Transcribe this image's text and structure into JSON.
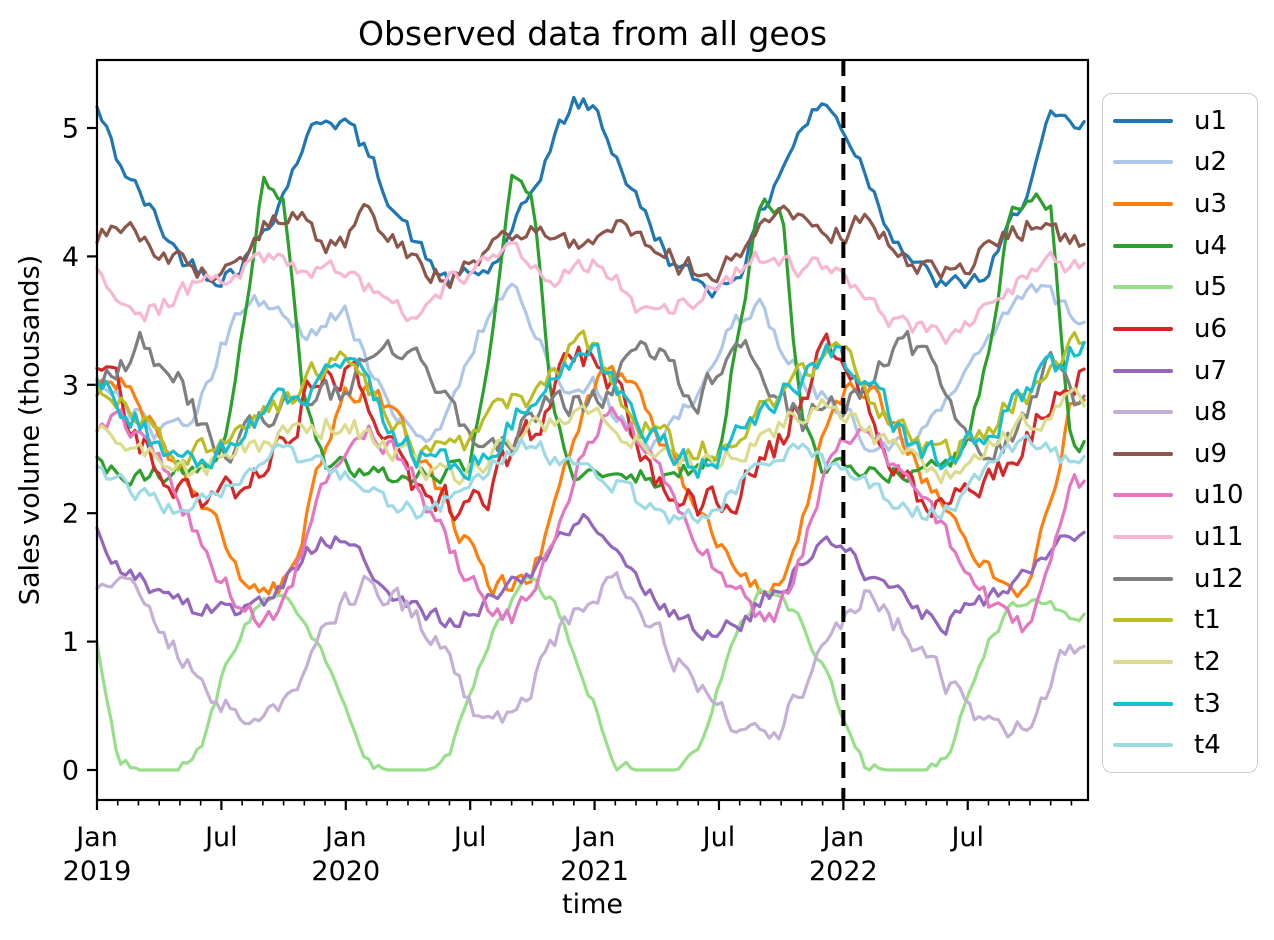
{
  "chart_data": {
    "type": "line",
    "title": "Observed data from all geos",
    "xlabel": "time",
    "ylabel": "Sales volume (thousands)",
    "grid": false,
    "legend_position": "right",
    "y_ticks": [
      0,
      1,
      2,
      3,
      4,
      5
    ],
    "ylim": [
      -0.25,
      5.55
    ],
    "x_range": {
      "start": "2019-01",
      "end": "2022-12",
      "resolution": "monthly",
      "months": 48
    },
    "x_major_ticks": [
      {
        "month_index": 0,
        "label": "Jan",
        "year": "2019"
      },
      {
        "month_index": 6,
        "label": "Jul",
        "year": ""
      },
      {
        "month_index": 12,
        "label": "Jan",
        "year": "2020"
      },
      {
        "month_index": 18,
        "label": "Jul",
        "year": ""
      },
      {
        "month_index": 24,
        "label": "Jan",
        "year": "2021"
      },
      {
        "month_index": 30,
        "label": "Jul",
        "year": ""
      },
      {
        "month_index": 36,
        "label": "Jan",
        "year": "2022"
      },
      {
        "month_index": 42,
        "label": "Jul",
        "year": ""
      }
    ],
    "x_minor_ticks": "every month",
    "event_line": {
      "date": "2022-01",
      "month_index": 36,
      "style": "dashed",
      "color": "#000000"
    },
    "series": [
      {
        "name": "u1",
        "color": "#1f77b4",
        "noise": 0.07,
        "values": [
          5.15,
          4.75,
          4.5,
          4.25,
          4.0,
          3.9,
          3.85,
          3.95,
          4.2,
          4.5,
          4.9,
          5.1,
          5.05,
          4.8,
          4.5,
          4.2,
          3.95,
          3.8,
          3.85,
          3.9,
          4.15,
          4.5,
          4.9,
          5.2,
          5.15,
          4.8,
          4.45,
          4.15,
          3.9,
          3.8,
          3.75,
          3.9,
          4.3,
          4.7,
          5.0,
          5.2,
          5.0,
          4.7,
          4.3,
          4.05,
          3.85,
          3.75,
          3.8,
          3.85,
          4.2,
          4.6,
          5.05,
          5.0
        ]
      },
      {
        "name": "u2",
        "color": "#aec7e8",
        "noise": 0.07,
        "values": [
          3.1,
          2.9,
          2.75,
          2.6,
          2.65,
          2.9,
          3.3,
          3.55,
          3.65,
          3.5,
          3.4,
          3.5,
          3.55,
          3.2,
          2.9,
          2.65,
          2.6,
          2.8,
          3.2,
          3.6,
          3.8,
          3.5,
          3.1,
          2.95,
          3.0,
          2.75,
          2.6,
          2.55,
          2.7,
          3.0,
          3.3,
          3.5,
          3.6,
          3.3,
          3.05,
          2.9,
          2.8,
          2.6,
          2.5,
          2.55,
          2.65,
          2.85,
          3.1,
          3.3,
          3.6,
          3.8,
          3.7,
          3.5
        ]
      },
      {
        "name": "u3",
        "color": "#ff7f0e",
        "noise": 0.08,
        "values": [
          2.95,
          3.05,
          2.9,
          2.6,
          2.35,
          2.1,
          1.8,
          1.5,
          1.35,
          1.45,
          1.9,
          2.5,
          2.9,
          3.0,
          2.85,
          2.55,
          2.3,
          2.0,
          1.7,
          1.45,
          1.4,
          1.5,
          2.0,
          2.6,
          3.0,
          3.1,
          2.9,
          2.6,
          2.3,
          2.05,
          1.75,
          1.5,
          1.4,
          1.5,
          1.95,
          2.55,
          2.95,
          3.0,
          2.8,
          2.5,
          2.25,
          2.0,
          1.75,
          1.55,
          1.45,
          1.4,
          2.1,
          2.9
        ]
      },
      {
        "name": "u4",
        "color": "#2ca02c",
        "noise": 0.07,
        "values": [
          2.4,
          2.3,
          2.25,
          2.3,
          2.35,
          2.3,
          2.45,
          3.4,
          4.6,
          4.5,
          2.9,
          2.4,
          2.35,
          2.3,
          2.25,
          2.3,
          2.3,
          2.35,
          2.4,
          3.3,
          4.55,
          4.4,
          2.8,
          2.35,
          2.4,
          2.35,
          2.3,
          2.25,
          2.35,
          2.3,
          2.45,
          3.5,
          4.45,
          4.4,
          2.7,
          2.3,
          2.35,
          2.3,
          2.3,
          2.35,
          2.3,
          2.35,
          2.5,
          3.2,
          4.3,
          4.5,
          4.4,
          2.5
        ]
      },
      {
        "name": "u5",
        "color": "#98df8a",
        "noise": 0.04,
        "values": [
          1.0,
          0.1,
          0,
          0,
          0,
          0.15,
          0.7,
          1.1,
          1.35,
          1.4,
          1.2,
          0.85,
          0.45,
          0.05,
          0,
          0,
          0,
          0.1,
          0.6,
          1.05,
          1.3,
          1.5,
          1.3,
          0.9,
          0.5,
          0.05,
          0,
          0,
          0,
          0.15,
          0.65,
          1.1,
          1.4,
          1.35,
          1.15,
          0.8,
          0.4,
          0.05,
          0,
          0,
          0,
          0.1,
          0.55,
          1.0,
          1.25,
          1.35,
          1.3,
          1.2
        ]
      },
      {
        "name": "u6",
        "color": "#d62728",
        "noise": 0.13,
        "values": [
          3.25,
          2.95,
          2.6,
          2.35,
          2.15,
          2.1,
          2.2,
          2.15,
          2.35,
          2.6,
          2.85,
          3.1,
          3.15,
          2.9,
          2.55,
          2.3,
          2.1,
          2.05,
          2.15,
          2.2,
          2.4,
          2.65,
          2.9,
          3.25,
          3.2,
          2.9,
          2.6,
          2.3,
          2.15,
          2.0,
          2.1,
          2.2,
          2.35,
          2.55,
          2.9,
          3.35,
          3.1,
          2.85,
          2.55,
          2.35,
          2.1,
          2.05,
          2.1,
          2.25,
          2.4,
          2.6,
          2.9,
          3.1
        ]
      },
      {
        "name": "u7",
        "color": "#9467bd",
        "noise": 0.07,
        "values": [
          1.85,
          1.6,
          1.5,
          1.4,
          1.3,
          1.2,
          1.25,
          1.2,
          1.3,
          1.5,
          1.7,
          1.8,
          1.8,
          1.65,
          1.45,
          1.3,
          1.2,
          1.15,
          1.2,
          1.3,
          1.4,
          1.55,
          1.75,
          1.9,
          1.95,
          1.7,
          1.5,
          1.35,
          1.2,
          1.1,
          1.05,
          1.15,
          1.3,
          1.45,
          1.6,
          1.75,
          1.7,
          1.55,
          1.4,
          1.3,
          1.2,
          1.15,
          1.25,
          1.3,
          1.4,
          1.55,
          1.75,
          1.85
        ]
      },
      {
        "name": "u8",
        "color": "#c5b0d5",
        "noise": 0.09,
        "values": [
          1.35,
          1.45,
          1.3,
          1.1,
          0.9,
          0.75,
          0.55,
          0.4,
          0.45,
          0.55,
          0.8,
          1.1,
          1.3,
          1.45,
          1.35,
          1.25,
          1.1,
          0.9,
          0.5,
          0.35,
          0.45,
          0.7,
          1.0,
          1.2,
          1.4,
          1.5,
          1.35,
          1.1,
          0.85,
          0.65,
          0.5,
          0.35,
          0.3,
          0.35,
          0.6,
          0.9,
          1.2,
          1.35,
          1.25,
          1.05,
          0.85,
          0.65,
          0.5,
          0.4,
          0.35,
          0.45,
          0.7,
          1.0
        ]
      },
      {
        "name": "u9",
        "color": "#8c564b",
        "noise": 0.08,
        "values": [
          4.1,
          4.3,
          4.15,
          4.0,
          3.95,
          3.9,
          3.9,
          4.0,
          4.2,
          4.35,
          4.25,
          4.1,
          4.15,
          4.35,
          4.2,
          4.05,
          3.9,
          3.85,
          3.95,
          4.05,
          4.15,
          4.3,
          4.2,
          4.1,
          4.05,
          4.25,
          4.2,
          4.1,
          3.95,
          3.9,
          3.9,
          4.0,
          4.2,
          4.35,
          4.3,
          4.15,
          4.2,
          4.3,
          4.15,
          4.0,
          3.9,
          3.85,
          3.95,
          4.05,
          4.15,
          4.25,
          4.2,
          4.1
        ]
      },
      {
        "name": "u10",
        "color": "#e377c2",
        "noise": 0.08,
        "values": [
          2.6,
          2.75,
          2.6,
          2.4,
          2.1,
          1.8,
          1.5,
          1.25,
          1.15,
          1.3,
          1.7,
          2.2,
          2.55,
          2.7,
          2.55,
          2.35,
          2.05,
          1.75,
          1.45,
          1.3,
          1.2,
          1.35,
          1.75,
          2.3,
          2.65,
          2.8,
          2.6,
          2.4,
          2.1,
          1.8,
          1.55,
          1.35,
          1.2,
          1.25,
          1.65,
          2.25,
          2.6,
          2.7,
          2.5,
          2.3,
          2.05,
          1.8,
          1.55,
          1.3,
          1.15,
          1.1,
          1.6,
          2.2
        ]
      },
      {
        "name": "u11",
        "color": "#f7b6d2",
        "noise": 0.07,
        "values": [
          3.85,
          3.7,
          3.55,
          3.6,
          3.7,
          3.8,
          3.85,
          3.9,
          3.95,
          4.0,
          3.9,
          3.85,
          3.9,
          3.75,
          3.6,
          3.55,
          3.65,
          3.8,
          3.9,
          4.0,
          4.05,
          3.95,
          3.85,
          3.9,
          3.95,
          3.8,
          3.6,
          3.5,
          3.6,
          3.7,
          3.8,
          3.9,
          4.0,
          3.95,
          3.9,
          3.95,
          3.9,
          3.7,
          3.55,
          3.45,
          3.4,
          3.35,
          3.5,
          3.6,
          3.75,
          3.9,
          4.0,
          3.9
        ]
      },
      {
        "name": "u12",
        "color": "#7f7f7f",
        "noise": 0.11,
        "values": [
          2.9,
          3.1,
          3.3,
          3.2,
          3.0,
          2.7,
          2.5,
          2.55,
          2.7,
          2.9,
          3.0,
          2.9,
          2.95,
          3.15,
          3.3,
          3.35,
          3.1,
          2.8,
          2.55,
          2.5,
          2.6,
          2.8,
          2.9,
          2.85,
          2.9,
          3.05,
          3.2,
          3.3,
          3.1,
          2.9,
          3.1,
          3.4,
          3.2,
          2.9,
          2.7,
          2.8,
          2.85,
          3.0,
          3.2,
          3.3,
          3.15,
          2.9,
          2.6,
          2.5,
          2.6,
          2.85,
          3.3,
          2.9
        ]
      },
      {
        "name": "t1",
        "color": "#bcbd22",
        "noise": 0.1,
        "values": [
          3.05,
          2.9,
          2.7,
          2.55,
          2.45,
          2.5,
          2.6,
          2.7,
          2.8,
          2.9,
          3.0,
          3.15,
          3.2,
          2.95,
          2.75,
          2.55,
          2.45,
          2.5,
          2.55,
          2.7,
          2.85,
          2.95,
          3.05,
          3.25,
          3.3,
          3.0,
          2.75,
          2.6,
          2.5,
          2.45,
          2.55,
          2.65,
          2.8,
          2.9,
          3.05,
          3.2,
          3.25,
          3.0,
          2.8,
          2.6,
          2.5,
          2.45,
          2.55,
          2.7,
          2.85,
          2.95,
          3.1,
          3.3
        ]
      },
      {
        "name": "t2",
        "color": "#dbdb8d",
        "noise": 0.09,
        "values": [
          2.7,
          2.6,
          2.5,
          2.4,
          2.35,
          2.3,
          2.4,
          2.5,
          2.55,
          2.6,
          2.65,
          2.7,
          2.75,
          2.6,
          2.5,
          2.45,
          2.35,
          2.3,
          2.35,
          2.45,
          2.55,
          2.65,
          2.7,
          2.8,
          2.85,
          2.7,
          2.55,
          2.45,
          2.4,
          2.35,
          2.4,
          2.5,
          2.6,
          2.7,
          2.75,
          2.85,
          2.8,
          2.65,
          2.55,
          2.45,
          2.35,
          2.3,
          2.4,
          2.5,
          2.6,
          2.7,
          2.8,
          2.9
        ]
      },
      {
        "name": "t3",
        "color": "#17becf",
        "noise": 0.1,
        "values": [
          3.1,
          2.9,
          2.7,
          2.5,
          2.4,
          2.35,
          2.45,
          2.6,
          2.7,
          2.85,
          2.95,
          3.1,
          3.15,
          2.95,
          2.7,
          2.55,
          2.4,
          2.35,
          2.4,
          2.55,
          2.7,
          2.85,
          3.0,
          3.15,
          3.2,
          2.95,
          2.75,
          2.55,
          2.45,
          2.4,
          2.5,
          2.6,
          2.75,
          2.9,
          3.05,
          3.25,
          3.2,
          3.0,
          2.8,
          2.6,
          2.5,
          2.45,
          2.55,
          2.65,
          2.8,
          2.95,
          3.1,
          3.25
        ]
      },
      {
        "name": "t4",
        "color": "#9edae5",
        "noise": 0.07,
        "values": [
          2.35,
          2.25,
          2.15,
          2.05,
          2.0,
          2.05,
          2.15,
          2.3,
          2.45,
          2.5,
          2.4,
          2.35,
          2.3,
          2.2,
          2.1,
          2.05,
          2.0,
          2.1,
          2.2,
          2.35,
          2.5,
          2.55,
          2.45,
          2.35,
          2.35,
          2.25,
          2.1,
          2.0,
          1.95,
          2.0,
          2.1,
          2.25,
          2.4,
          2.5,
          2.45,
          2.4,
          2.35,
          2.25,
          2.15,
          2.05,
          2.0,
          2.05,
          2.2,
          2.35,
          2.5,
          2.55,
          2.45,
          2.4
        ]
      }
    ]
  },
  "colors": {
    "text": "#000000",
    "spine": "#000000",
    "legend_border": "#cccccc",
    "background": "#ffffff"
  }
}
